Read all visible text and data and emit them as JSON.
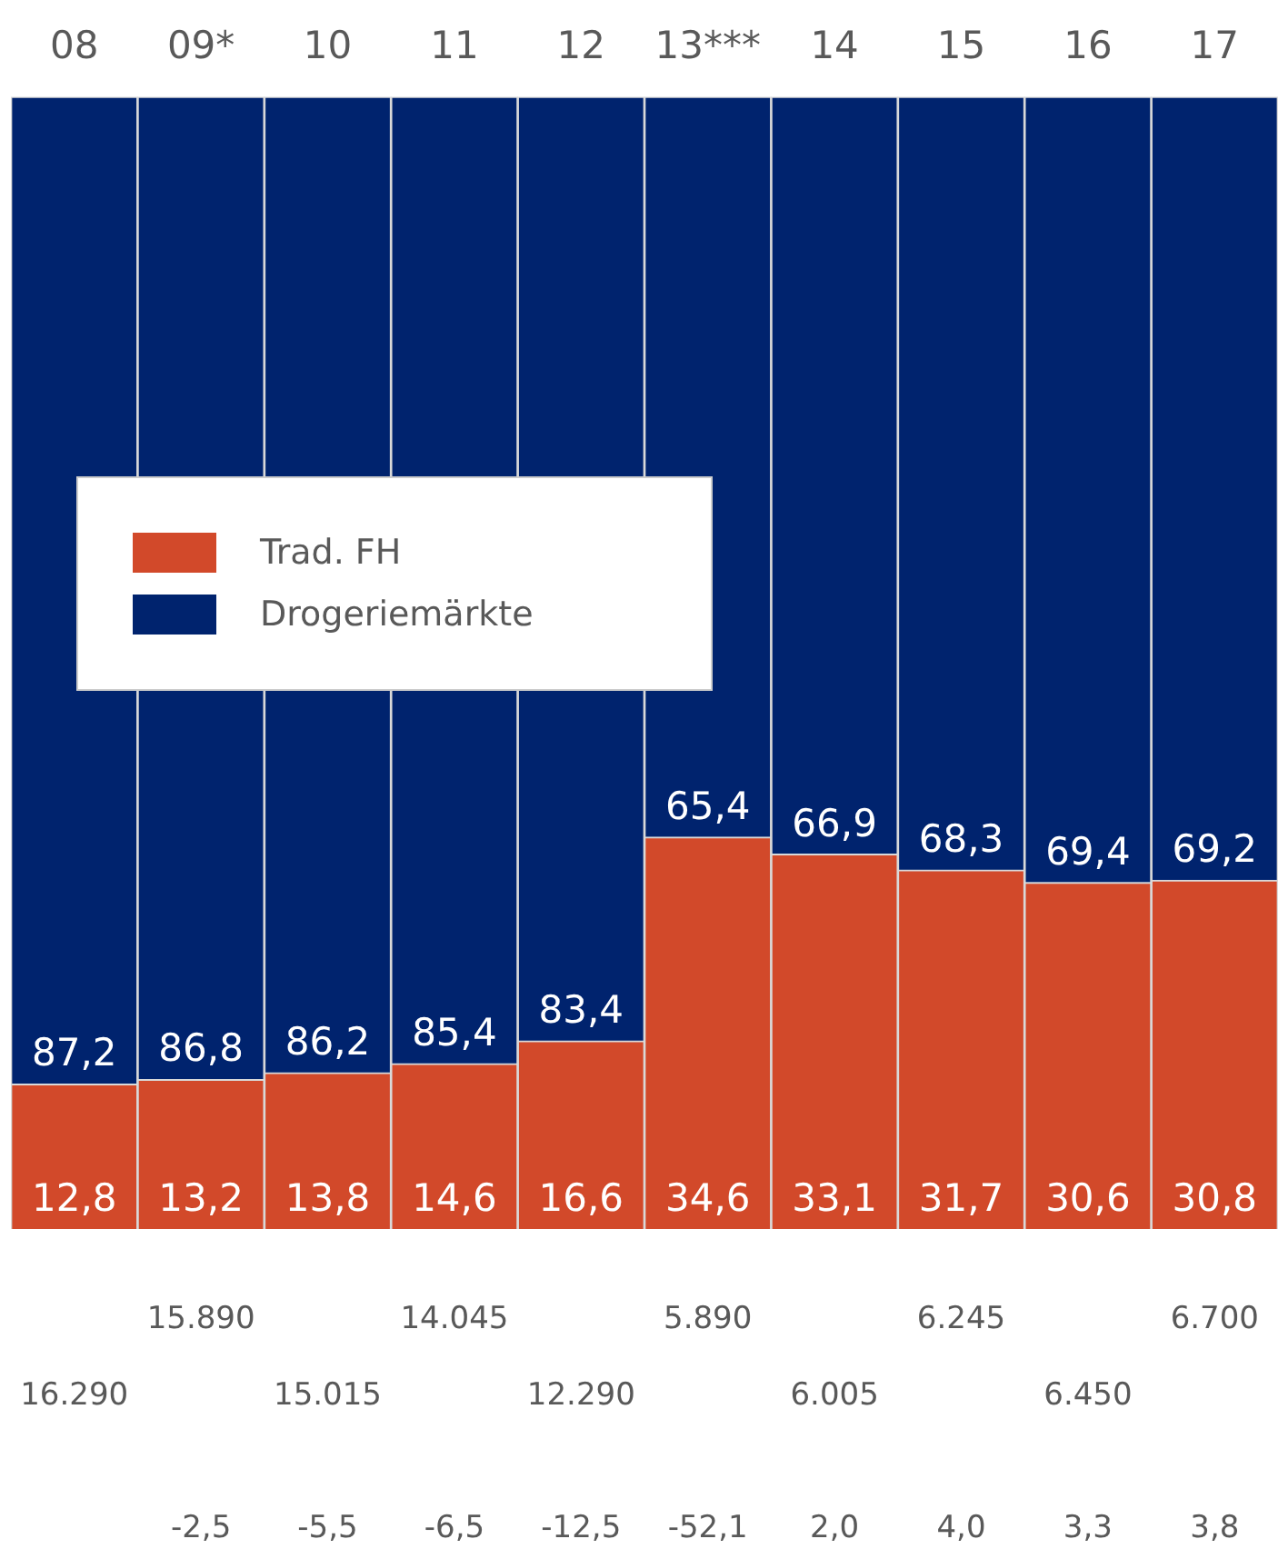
{
  "chart_data": {
    "type": "bar",
    "stacked": true,
    "categories": [
      "08",
      "09*",
      "10",
      "11",
      "12",
      "13***",
      "14",
      "15",
      "16",
      "17"
    ],
    "series": [
      {
        "name": "Trad. FH",
        "color": "#d2492a",
        "values": [
          12.8,
          13.2,
          13.8,
          14.6,
          16.6,
          34.6,
          33.1,
          31.7,
          30.6,
          30.8
        ],
        "value_labels": [
          "12,8",
          "13,2",
          "13,8",
          "14,6",
          "16,6",
          "34,6",
          "33,1",
          "31,7",
          "30,6",
          "30,8"
        ]
      },
      {
        "name": "Drogeriemärkte",
        "color": "#00236e",
        "values": [
          87.2,
          86.8,
          86.2,
          85.4,
          83.4,
          65.4,
          66.9,
          68.3,
          69.4,
          69.2
        ],
        "value_labels": [
          "87,2",
          "86,8",
          "86,2",
          "85,4",
          "83,4",
          "65,4",
          "66,9",
          "68,3",
          "69,4",
          "69,2"
        ]
      }
    ],
    "tick_labels": "x",
    "legend": "left",
    "grid": false,
    "annotations": [
      "16.290",
      "15.890",
      "15.015",
      "14.045",
      "12.290",
      "5.890",
      "6.005",
      "6.245",
      "6.450",
      "6.700",
      "-2,5",
      "-5,5",
      "-6,5",
      "-12,5",
      "-52,1",
      "2,0",
      "4,0",
      "3,3",
      "3,8"
    ]
  }
}
